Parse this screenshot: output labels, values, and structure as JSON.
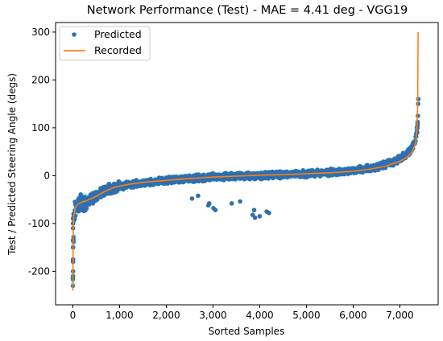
{
  "chart_data": {
    "type": "scatter",
    "title": "Network Performance (Test) - MAE = 4.41 deg - VGG19",
    "xlabel": "Sorted Samples",
    "ylabel": "Test / Predicted Steering Angle (degs)",
    "xlim": [
      -370,
      7820
    ],
    "ylim": [
      -270,
      320
    ],
    "x_ticks": [
      0,
      1000,
      2000,
      3000,
      4000,
      5000,
      6000,
      7000
    ],
    "x_tick_labels": [
      "0",
      "1,000",
      "2,000",
      "3,000",
      "4,000",
      "5,000",
      "6,000",
      "7,000"
    ],
    "y_ticks": [
      -200,
      -100,
      0,
      100,
      200,
      300
    ],
    "y_tick_labels": [
      "-200",
      "-100",
      "0",
      "100",
      "200",
      "300"
    ],
    "grid": false,
    "legend_position": "top-left",
    "colors": {
      "predicted": "#2f6fb0",
      "recorded": "#ff7f0e",
      "halo": "#b8f2f2"
    },
    "series": [
      {
        "name": "Predicted",
        "kind": "scatter",
        "band_points": [
          [
            0,
            -215
          ],
          [
            10,
            -150
          ],
          [
            20,
            -100
          ],
          [
            40,
            -75
          ],
          [
            100,
            -60
          ],
          [
            300,
            -52
          ],
          [
            500,
            -42
          ],
          [
            700,
            -30
          ],
          [
            1000,
            -22
          ],
          [
            1500,
            -15
          ],
          [
            2000,
            -10
          ],
          [
            2500,
            -6
          ],
          [
            3000,
            -3
          ],
          [
            3500,
            -1
          ],
          [
            4000,
            0
          ],
          [
            4500,
            2
          ],
          [
            5000,
            4
          ],
          [
            5500,
            7
          ],
          [
            6000,
            10
          ],
          [
            6500,
            18
          ],
          [
            6900,
            30
          ],
          [
            7100,
            42
          ],
          [
            7250,
            55
          ],
          [
            7350,
            80
          ],
          [
            7380,
            110
          ],
          [
            7390,
            160
          ]
        ],
        "outliers": [
          [
            5,
            -210
          ],
          [
            5,
            -200
          ],
          [
            5,
            -180
          ],
          [
            5,
            -175
          ],
          [
            5,
            -150
          ],
          [
            5,
            -135
          ],
          [
            5,
            -110
          ],
          [
            5,
            -100
          ],
          [
            5,
            -90
          ],
          [
            10,
            -88
          ],
          [
            15,
            -80
          ],
          [
            430,
            -58
          ],
          [
            900,
            -35
          ],
          [
            2550,
            -48
          ],
          [
            2680,
            -42
          ],
          [
            2900,
            -62
          ],
          [
            2920,
            -58
          ],
          [
            3050,
            -72
          ],
          [
            3010,
            -68
          ],
          [
            3400,
            -58
          ],
          [
            3580,
            -54
          ],
          [
            3850,
            -82
          ],
          [
            3880,
            -72
          ],
          [
            3900,
            -88
          ],
          [
            4000,
            -85
          ],
          [
            4150,
            -75
          ],
          [
            4200,
            -78
          ],
          [
            7370,
            90
          ],
          [
            7375,
            100
          ],
          [
            7380,
            112
          ],
          [
            7385,
            125
          ],
          [
            7390,
            150
          ],
          [
            7395,
            160
          ]
        ]
      },
      {
        "name": "Recorded",
        "kind": "line",
        "points": [
          [
            0,
            -240
          ],
          [
            5,
            -160
          ],
          [
            10,
            -110
          ],
          [
            20,
            -85
          ],
          [
            50,
            -68
          ],
          [
            100,
            -60
          ],
          [
            200,
            -55
          ],
          [
            300,
            -52
          ],
          [
            500,
            -43
          ],
          [
            700,
            -32
          ],
          [
            900,
            -24
          ],
          [
            1200,
            -18
          ],
          [
            1500,
            -14
          ],
          [
            2000,
            -10
          ],
          [
            2500,
            -6
          ],
          [
            3000,
            -3
          ],
          [
            3500,
            -1
          ],
          [
            4000,
            1
          ],
          [
            4500,
            2
          ],
          [
            5000,
            4
          ],
          [
            5500,
            6
          ],
          [
            6000,
            9
          ],
          [
            6400,
            14
          ],
          [
            6700,
            20
          ],
          [
            7000,
            30
          ],
          [
            7150,
            38
          ],
          [
            7250,
            48
          ],
          [
            7300,
            58
          ],
          [
            7340,
            70
          ],
          [
            7360,
            90
          ],
          [
            7380,
            140
          ],
          [
            7390,
            300
          ]
        ]
      }
    ]
  }
}
